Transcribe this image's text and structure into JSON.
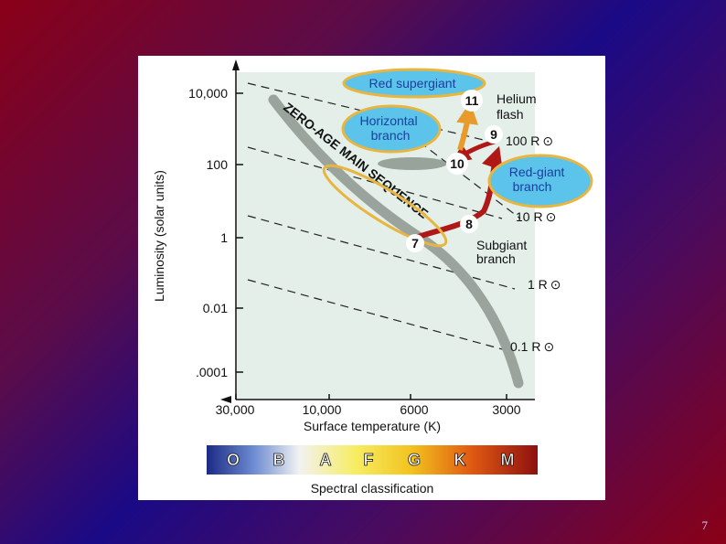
{
  "slide": {
    "number": "7"
  },
  "colors": {
    "plot_background": "#e4efe9",
    "main_sequence": "#9aa39c",
    "callout_fill": "#5cc3ea",
    "callout_outline": "#e8b640",
    "track_red": "#b01818",
    "track_orange": "#e89a2a",
    "marker_fill": "#ffffff"
  },
  "diagram": {
    "y_axis_label": "Luminosity (solar units)",
    "x_axis_label": "Surface temperature (K)",
    "y_ticks": [
      "10,000",
      "100",
      "1",
      "0.01",
      ".0001"
    ],
    "x_ticks": [
      "30,000",
      "10,000",
      "6000",
      "3000"
    ],
    "main_sequence_label": "ZERO-AGE MAIN SEQUENCE",
    "radius_lines": [
      "100 R",
      "10 R",
      "1 R",
      "0.1 R"
    ],
    "sun_symbol": "⊙",
    "regions": {
      "red_supergiant": "Red supergiant",
      "horizontal_branch": [
        "Horizontal",
        "branch"
      ],
      "red_giant_branch": [
        "Red-giant",
        "branch"
      ],
      "helium_flash": [
        "Helium",
        "flash"
      ],
      "subgiant_branch": [
        "Subgiant",
        "branch"
      ]
    },
    "stages": [
      "7",
      "8",
      "9",
      "10",
      "11"
    ]
  },
  "spectral": {
    "classes": [
      "O",
      "B",
      "A",
      "F",
      "G",
      "K",
      "M"
    ],
    "label": "Spectral classification"
  }
}
